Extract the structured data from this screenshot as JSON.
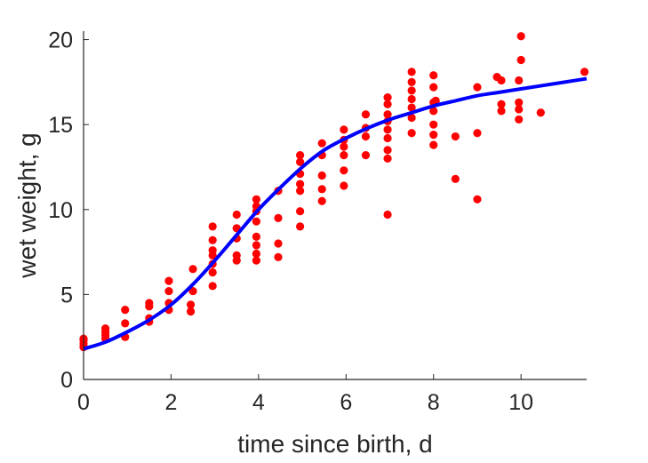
{
  "chart_data": {
    "type": "scatter",
    "xlabel": "time since birth, d",
    "ylabel": "wet weight, g",
    "xlim": [
      0,
      11.5
    ],
    "ylim": [
      0,
      20.5
    ],
    "xticks": [
      0,
      2,
      4,
      6,
      8,
      10
    ],
    "yticks": [
      0,
      5,
      10,
      15,
      20
    ],
    "grid": false,
    "legend": "none",
    "colors": {
      "points": "#ff0000",
      "fit": "#0000ff",
      "axis": "#262626"
    },
    "series": [
      {
        "kind": "points",
        "points": [
          [
            0,
            1.9
          ],
          [
            0,
            2.1
          ],
          [
            0,
            2.3
          ],
          [
            0,
            2.4
          ],
          [
            0.5,
            2.4
          ],
          [
            0.5,
            2.6
          ],
          [
            0.5,
            2.8
          ],
          [
            0.5,
            3.0
          ],
          [
            0.95,
            2.5
          ],
          [
            0.95,
            3.3
          ],
          [
            0.95,
            4.1
          ],
          [
            1.5,
            3.4
          ],
          [
            1.5,
            3.6
          ],
          [
            1.5,
            4.3
          ],
          [
            1.5,
            4.5
          ],
          [
            1.95,
            4.1
          ],
          [
            1.95,
            4.5
          ],
          [
            1.95,
            5.2
          ],
          [
            1.95,
            5.8
          ],
          [
            2.45,
            4.0
          ],
          [
            2.45,
            4.4
          ],
          [
            2.5,
            5.2
          ],
          [
            2.5,
            6.5
          ],
          [
            2.95,
            5.5
          ],
          [
            2.95,
            6.3
          ],
          [
            2.95,
            6.8
          ],
          [
            2.95,
            7.3
          ],
          [
            2.95,
            7.6
          ],
          [
            2.95,
            8.2
          ],
          [
            2.95,
            9.0
          ],
          [
            3.5,
            7.0
          ],
          [
            3.5,
            7.3
          ],
          [
            3.5,
            8.3
          ],
          [
            3.5,
            8.9
          ],
          [
            3.5,
            9.7
          ],
          [
            3.95,
            7.0
          ],
          [
            3.95,
            7.4
          ],
          [
            3.95,
            7.9
          ],
          [
            3.95,
            8.4
          ],
          [
            3.95,
            9.3
          ],
          [
            3.95,
            9.9
          ],
          [
            3.95,
            10.2
          ],
          [
            3.95,
            10.6
          ],
          [
            4.45,
            7.2
          ],
          [
            4.45,
            8.0
          ],
          [
            4.45,
            9.5
          ],
          [
            4.45,
            11.1
          ],
          [
            4.95,
            9.0
          ],
          [
            4.95,
            9.9
          ],
          [
            4.95,
            11.1
          ],
          [
            4.95,
            11.5
          ],
          [
            4.95,
            12.1
          ],
          [
            4.95,
            12.8
          ],
          [
            4.95,
            13.2
          ],
          [
            5.45,
            10.5
          ],
          [
            5.45,
            11.2
          ],
          [
            5.45,
            12.0
          ],
          [
            5.45,
            13.2
          ],
          [
            5.45,
            13.9
          ],
          [
            5.95,
            11.4
          ],
          [
            5.95,
            12.3
          ],
          [
            5.95,
            13.2
          ],
          [
            5.95,
            13.7
          ],
          [
            5.95,
            14.1
          ],
          [
            5.95,
            14.7
          ],
          [
            6.45,
            13.2
          ],
          [
            6.45,
            14.3
          ],
          [
            6.45,
            14.8
          ],
          [
            6.45,
            15.6
          ],
          [
            6.95,
            9.7
          ],
          [
            6.95,
            13.0
          ],
          [
            6.95,
            13.5
          ],
          [
            6.95,
            14.2
          ],
          [
            6.95,
            14.7
          ],
          [
            6.95,
            15.2
          ],
          [
            6.95,
            15.6
          ],
          [
            6.95,
            16.2
          ],
          [
            6.95,
            16.6
          ],
          [
            7.5,
            14.5
          ],
          [
            7.5,
            15.4
          ],
          [
            7.5,
            16.0
          ],
          [
            7.5,
            16.5
          ],
          [
            7.5,
            17.0
          ],
          [
            7.5,
            17.5
          ],
          [
            7.5,
            18.1
          ],
          [
            8.0,
            13.8
          ],
          [
            8.0,
            14.4
          ],
          [
            8.0,
            15.0
          ],
          [
            8.0,
            15.8
          ],
          [
            8.0,
            16.3
          ],
          [
            8.0,
            17.2
          ],
          [
            8.0,
            17.9
          ],
          [
            8.05,
            16.4
          ],
          [
            8.5,
            11.8
          ],
          [
            8.5,
            14.3
          ],
          [
            9.0,
            10.6
          ],
          [
            9.0,
            14.5
          ],
          [
            9.0,
            17.2
          ],
          [
            9.45,
            17.8
          ],
          [
            9.55,
            16.2
          ],
          [
            9.55,
            15.8
          ],
          [
            9.55,
            17.6
          ],
          [
            9.95,
            15.3
          ],
          [
            9.95,
            15.9
          ],
          [
            9.95,
            16.3
          ],
          [
            9.95,
            17.6
          ],
          [
            10.0,
            18.8
          ],
          [
            10.0,
            20.2
          ],
          [
            10.45,
            15.7
          ],
          [
            11.45,
            18.1
          ]
        ]
      },
      {
        "kind": "fit-line",
        "x": [
          0,
          0.5,
          1,
          1.5,
          2,
          2.5,
          3,
          3.5,
          4,
          4.5,
          5,
          5.5,
          6,
          6.5,
          7,
          7.5,
          8,
          8.5,
          9,
          9.5,
          10,
          10.5,
          11,
          11.5
        ],
        "y": [
          1.8,
          2.2,
          2.8,
          3.5,
          4.4,
          5.6,
          7.0,
          8.5,
          10.0,
          11.3,
          12.5,
          13.5,
          14.2,
          14.8,
          15.3,
          15.7,
          16.1,
          16.4,
          16.7,
          16.9,
          17.1,
          17.3,
          17.5,
          17.7
        ]
      }
    ]
  }
}
